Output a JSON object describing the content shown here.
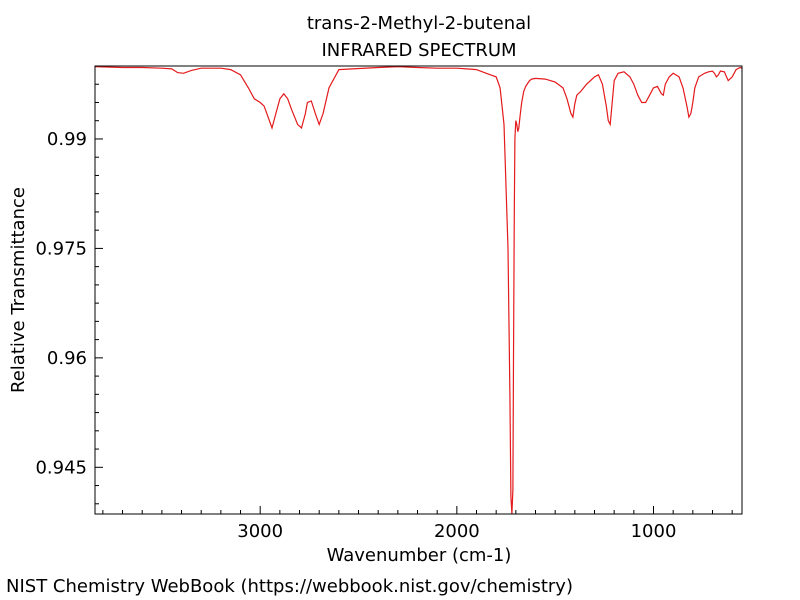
{
  "chart_data": {
    "type": "line",
    "title": "trans-2-Methyl-2-butenal",
    "subtitle": "INFRARED SPECTRUM",
    "xlabel": "Wavenumber (cm-1)",
    "ylabel": "Relative Transmittance",
    "x_reversed": true,
    "xlim": [
      3840,
      550
    ],
    "ylim": [
      0.9386,
      1.0
    ],
    "x_ticks": [
      3000,
      2000,
      1000
    ],
    "x_tick_labels": [
      "3000",
      "2000",
      "1000"
    ],
    "y_ticks": [
      0.99,
      0.975,
      0.96,
      0.945
    ],
    "y_tick_labels": [
      "0.99",
      "0.975",
      "0.96",
      "0.945"
    ],
    "grid": false,
    "legend": "none",
    "line_color": "#e41a1c",
    "series": [
      {
        "x": [
          3840,
          3700,
          3600,
          3500,
          3450,
          3420,
          3390,
          3350,
          3300,
          3200,
          3150,
          3100,
          3060,
          3030,
          3000,
          2980,
          2960,
          2940,
          2920,
          2900,
          2880,
          2860,
          2840,
          2810,
          2790,
          2770,
          2760,
          2740,
          2720,
          2700,
          2680,
          2650,
          2600,
          2400,
          2300,
          2200,
          2100,
          2000,
          1950,
          1900,
          1850,
          1800,
          1780,
          1760,
          1740,
          1730,
          1725,
          1720,
          1715,
          1712,
          1708,
          1705,
          1700,
          1695,
          1690,
          1685,
          1680,
          1675,
          1670,
          1660,
          1650,
          1640,
          1630,
          1620,
          1600,
          1550,
          1500,
          1460,
          1440,
          1420,
          1410,
          1400,
          1390,
          1370,
          1340,
          1300,
          1280,
          1260,
          1240,
          1230,
          1220,
          1210,
          1200,
          1180,
          1150,
          1120,
          1100,
          1080,
          1060,
          1040,
          1020,
          1000,
          980,
          960,
          950,
          940,
          920,
          900,
          870,
          850,
          830,
          820,
          810,
          800,
          790,
          770,
          740,
          720,
          700,
          690,
          680,
          670,
          660,
          640,
          620,
          600,
          580,
          560,
          550
        ],
        "y": [
          0.9999,
          0.9998,
          0.9998,
          0.9997,
          0.9996,
          0.9991,
          0.999,
          0.9994,
          0.9997,
          0.9997,
          0.9995,
          0.9988,
          0.997,
          0.9955,
          0.995,
          0.9945,
          0.993,
          0.9915,
          0.9935,
          0.9955,
          0.9962,
          0.9955,
          0.994,
          0.992,
          0.9915,
          0.9935,
          0.995,
          0.9952,
          0.9935,
          0.992,
          0.9935,
          0.997,
          0.9995,
          0.9998,
          0.9999,
          0.9998,
          0.9997,
          0.9997,
          0.9996,
          0.9995,
          0.999,
          0.9985,
          0.997,
          0.992,
          0.975,
          0.955,
          0.941,
          0.9386,
          0.942,
          0.96,
          0.98,
          0.99,
          0.9925,
          0.992,
          0.991,
          0.9915,
          0.9928,
          0.994,
          0.995,
          0.9965,
          0.9972,
          0.9976,
          0.998,
          0.9982,
          0.9983,
          0.9982,
          0.9978,
          0.997,
          0.9955,
          0.9935,
          0.993,
          0.9948,
          0.996,
          0.9965,
          0.9975,
          0.9985,
          0.9988,
          0.9975,
          0.9945,
          0.9925,
          0.992,
          0.995,
          0.998,
          0.999,
          0.9992,
          0.9985,
          0.9975,
          0.996,
          0.995,
          0.995,
          0.996,
          0.997,
          0.9972,
          0.9962,
          0.996,
          0.9975,
          0.9985,
          0.999,
          0.9985,
          0.997,
          0.9945,
          0.993,
          0.9935,
          0.995,
          0.997,
          0.9985,
          0.999,
          0.9992,
          0.9993,
          0.999,
          0.9985,
          0.9988,
          0.9993,
          0.9992,
          0.998,
          0.9985,
          0.9995,
          0.9998,
          0.9997
        ]
      }
    ]
  },
  "footer": {
    "credit": "NIST Chemistry WebBook (https://webbook.nist.gov/chemistry)"
  }
}
